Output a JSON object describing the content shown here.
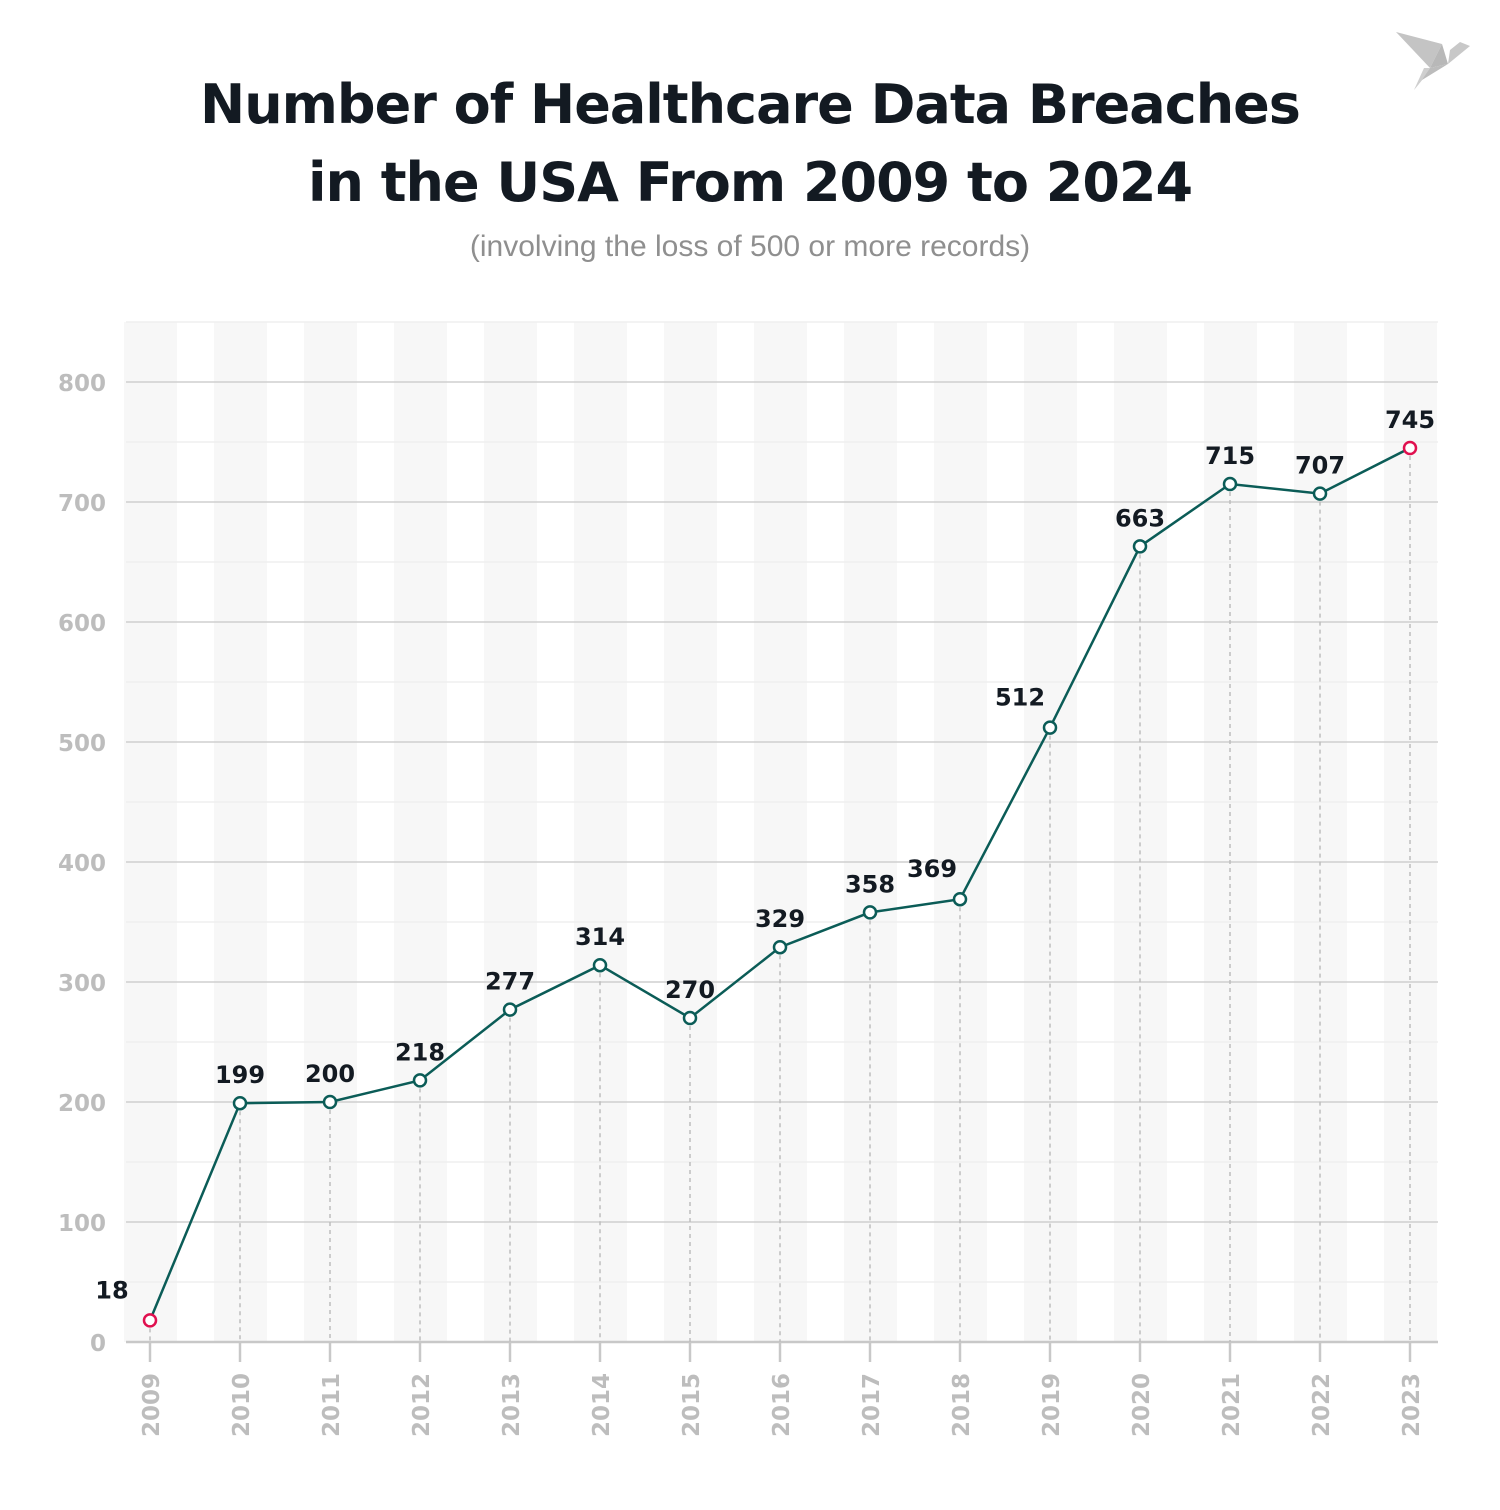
{
  "chart_data": {
    "type": "line",
    "title": "Number of Healthcare Data Breaches in the USA From 2009 to 2024",
    "title_lines": [
      "Number of Healthcare Data Breaches",
      "in the USA From 2009 to 2024"
    ],
    "subtitle": "(involving the loss of 500 or more records)",
    "xlabel": "",
    "ylabel": "",
    "categories": [
      "2009",
      "2010",
      "2011",
      "2012",
      "2013",
      "2014",
      "2015",
      "2016",
      "2017",
      "2018",
      "2019",
      "2020",
      "2021",
      "2022",
      "2023"
    ],
    "values": [
      18,
      199,
      200,
      218,
      277,
      314,
      270,
      329,
      358,
      369,
      512,
      663,
      715,
      707,
      745
    ],
    "data_labels": [
      "18",
      "199",
      "200",
      "218",
      "277",
      "314",
      "270",
      "329",
      "358",
      "369",
      "512",
      "663",
      "715",
      "707",
      "745"
    ],
    "ylim": [
      0,
      850
    ],
    "yticks": [
      0,
      100,
      200,
      300,
      400,
      500,
      600,
      700,
      800
    ],
    "grid": true,
    "line_color": "#0b5c57",
    "highlight_color": "#e0104f",
    "highlighted_points": [
      "2009",
      "2023"
    ]
  }
}
